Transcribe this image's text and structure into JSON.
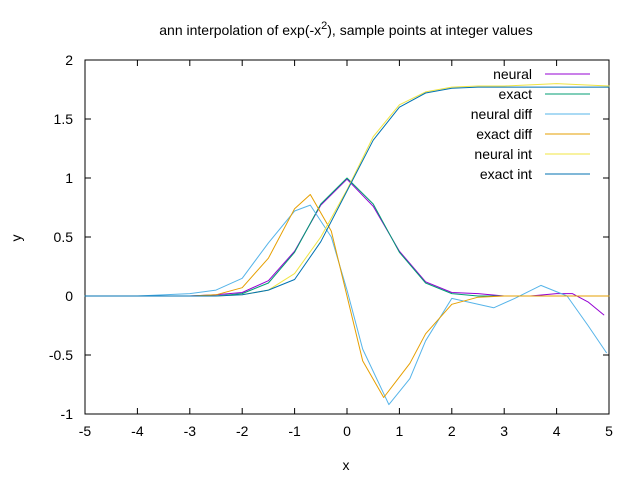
{
  "chart_data": {
    "type": "line",
    "title": "ann interpolation of exp(-x",
    "title_superscript": "2",
    "title_suffix": "), sample points at integer values",
    "xlabel": "x",
    "ylabel": "y",
    "xlim": [
      -5,
      5
    ],
    "ylim": [
      -1,
      2
    ],
    "xticks": [
      "-5",
      "-4",
      "-3",
      "-2",
      "-1",
      "0",
      "1",
      "2",
      "3",
      "4",
      "5"
    ],
    "xtick_values": [
      -5,
      -4,
      -3,
      -2,
      -1,
      0,
      1,
      2,
      3,
      4,
      5
    ],
    "yticks": [
      "-1",
      "-0.5",
      "0",
      "0.5",
      "1",
      "1.5",
      "2"
    ],
    "ytick_values": [
      -1,
      -0.5,
      0,
      0.5,
      1,
      1.5,
      2
    ],
    "grid": false,
    "legend_position": "top-right",
    "series": [
      {
        "name": "neural",
        "color": "#9400d3",
        "x": [
          -5,
          -4,
          -3,
          -2.5,
          -2,
          -1.5,
          -1,
          -0.5,
          0,
          0.5,
          1,
          1.5,
          2,
          2.5,
          3,
          3.5,
          4,
          4.3,
          4.6,
          4.9
        ],
        "y": [
          0,
          0,
          0,
          0.01,
          0.03,
          0.13,
          0.38,
          0.77,
          0.99,
          0.76,
          0.38,
          0.12,
          0.03,
          0.02,
          0,
          0,
          0.02,
          0.02,
          -0.05,
          -0.16
        ]
      },
      {
        "name": "exact",
        "color": "#009e73",
        "x": [
          -5,
          -4,
          -3,
          -2.5,
          -2,
          -1.5,
          -1,
          -0.5,
          0,
          0.5,
          1,
          1.5,
          2,
          2.5,
          3,
          3.5,
          4,
          5
        ],
        "y": [
          0,
          0,
          0,
          0,
          0.02,
          0.11,
          0.37,
          0.78,
          1,
          0.78,
          0.37,
          0.11,
          0.02,
          0,
          0,
          0,
          0,
          0
        ]
      },
      {
        "name": "neural diff",
        "color": "#56b4e9",
        "x": [
          -5,
          -4,
          -3,
          -2.5,
          -2,
          -1.5,
          -1,
          -0.7,
          -0.3,
          0,
          0.3,
          0.8,
          1.2,
          1.5,
          2,
          2.5,
          2.8,
          3.2,
          3.7,
          4.2,
          4.6,
          4.95
        ],
        "y": [
          0,
          0,
          0.02,
          0.05,
          0.15,
          0.45,
          0.72,
          0.77,
          0.5,
          0.05,
          -0.45,
          -0.92,
          -0.7,
          -0.38,
          -0.02,
          -0.07,
          -0.1,
          -0.02,
          0.09,
          0.0,
          -0.25,
          -0.48
        ]
      },
      {
        "name": "exact diff",
        "color": "#e69f00",
        "x": [
          -5,
          -4,
          -3,
          -2.5,
          -2,
          -1.5,
          -1,
          -0.7,
          -0.3,
          0,
          0.3,
          0.7,
          1.2,
          1.5,
          2,
          2.5,
          3,
          3.5,
          4,
          5
        ],
        "y": [
          0,
          0,
          0,
          0.01,
          0.07,
          0.32,
          0.74,
          0.86,
          0.55,
          0,
          -0.55,
          -0.86,
          -0.57,
          -0.32,
          -0.07,
          -0.01,
          0,
          0,
          0,
          0
        ]
      },
      {
        "name": "neural int",
        "color": "#f0e442",
        "x": [
          -5,
          -4,
          -3,
          -2.5,
          -2,
          -1.5,
          -1,
          -0.5,
          0,
          0.5,
          1,
          1.5,
          2,
          2.5,
          3,
          4,
          5
        ],
        "y": [
          0,
          0,
          0,
          0,
          0.01,
          0.05,
          0.19,
          0.5,
          0.9,
          1.35,
          1.62,
          1.73,
          1.77,
          1.78,
          1.78,
          1.8,
          1.78
        ]
      },
      {
        "name": "exact int",
        "color": "#0072b2",
        "x": [
          -5,
          -4,
          -3,
          -2.5,
          -2,
          -1.5,
          -1,
          -0.5,
          0,
          0.5,
          1,
          1.5,
          2,
          2.5,
          3,
          4,
          5
        ],
        "y": [
          0,
          0,
          0,
          0,
          0.01,
          0.05,
          0.14,
          0.46,
          0.89,
          1.32,
          1.6,
          1.72,
          1.76,
          1.77,
          1.77,
          1.77,
          1.77
        ]
      }
    ]
  }
}
